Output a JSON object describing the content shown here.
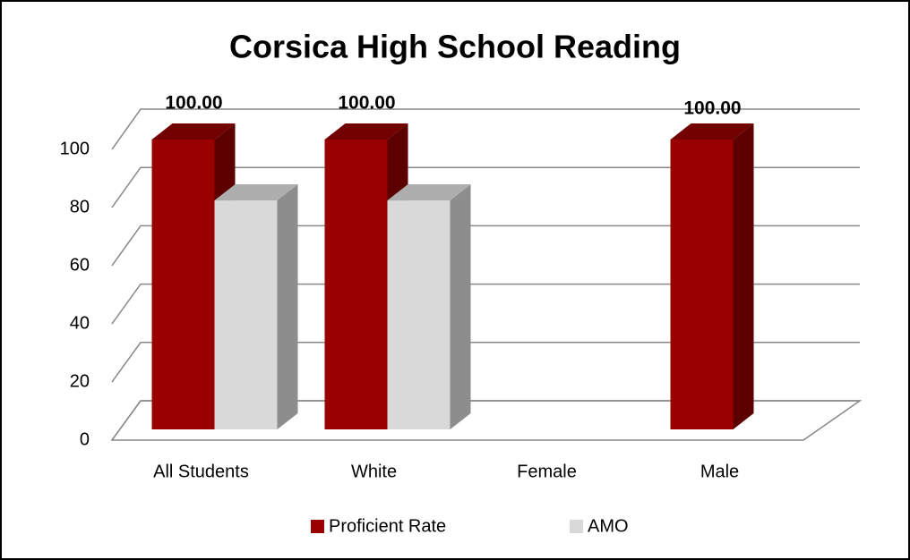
{
  "chart_data": {
    "type": "bar3d",
    "title": "Corsica High School Reading",
    "categories": [
      "All Students",
      "White",
      "Female",
      "Male"
    ],
    "series": [
      {
        "name": "Proficient Rate",
        "color": "#990000",
        "values": [
          100,
          100,
          null,
          100
        ],
        "value_labels": [
          "100.00",
          "100.00",
          null,
          "100.00"
        ]
      },
      {
        "name": "AMO",
        "color": "#d9d9d9",
        "values": [
          79,
          79,
          null,
          null
        ]
      }
    ],
    "ylim": [
      0,
      100
    ],
    "yticks": [
      0,
      20,
      40,
      60,
      80,
      100
    ],
    "grid": true,
    "legend": "bottom"
  }
}
